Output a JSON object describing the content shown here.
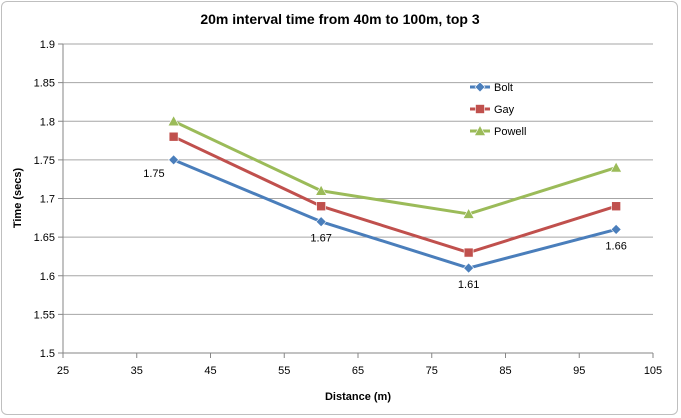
{
  "chart_data": {
    "type": "line",
    "title": "20m interval time from 40m to 100m, top 3",
    "xlabel": "Distance (m)",
    "ylabel": "Time (secs)",
    "xlim": [
      25,
      105
    ],
    "ylim": [
      1.5,
      1.9
    ],
    "xticks": [
      "25",
      "35",
      "45",
      "55",
      "65",
      "75",
      "85",
      "95",
      "105"
    ],
    "yticks": [
      "1.5",
      "1.55",
      "1.6",
      "1.65",
      "1.7",
      "1.75",
      "1.8",
      "1.85",
      "1.9"
    ],
    "x": [
      40,
      60,
      80,
      100
    ],
    "grid": "horizontal",
    "legend_position": "top-right",
    "series": [
      {
        "name": "Bolt",
        "values": [
          1.75,
          1.67,
          1.61,
          1.66
        ],
        "color": "#4a7ebb",
        "marker": "diamond"
      },
      {
        "name": "Gay",
        "values": [
          1.78,
          1.69,
          1.63,
          1.69
        ],
        "color": "#c0504d",
        "marker": "square"
      },
      {
        "name": "Powell",
        "values": [
          1.8,
          1.71,
          1.68,
          1.74
        ],
        "color": "#9bbb59",
        "marker": "triangle"
      }
    ],
    "data_labels": [
      {
        "series": "Bolt",
        "x": 40,
        "text": "1.75",
        "position": "left"
      },
      {
        "series": "Bolt",
        "x": 60,
        "text": "1.67",
        "position": "below"
      },
      {
        "series": "Bolt",
        "x": 80,
        "text": "1.61",
        "position": "below"
      },
      {
        "series": "Bolt",
        "x": 100,
        "text": "1.66",
        "position": "below"
      }
    ]
  }
}
